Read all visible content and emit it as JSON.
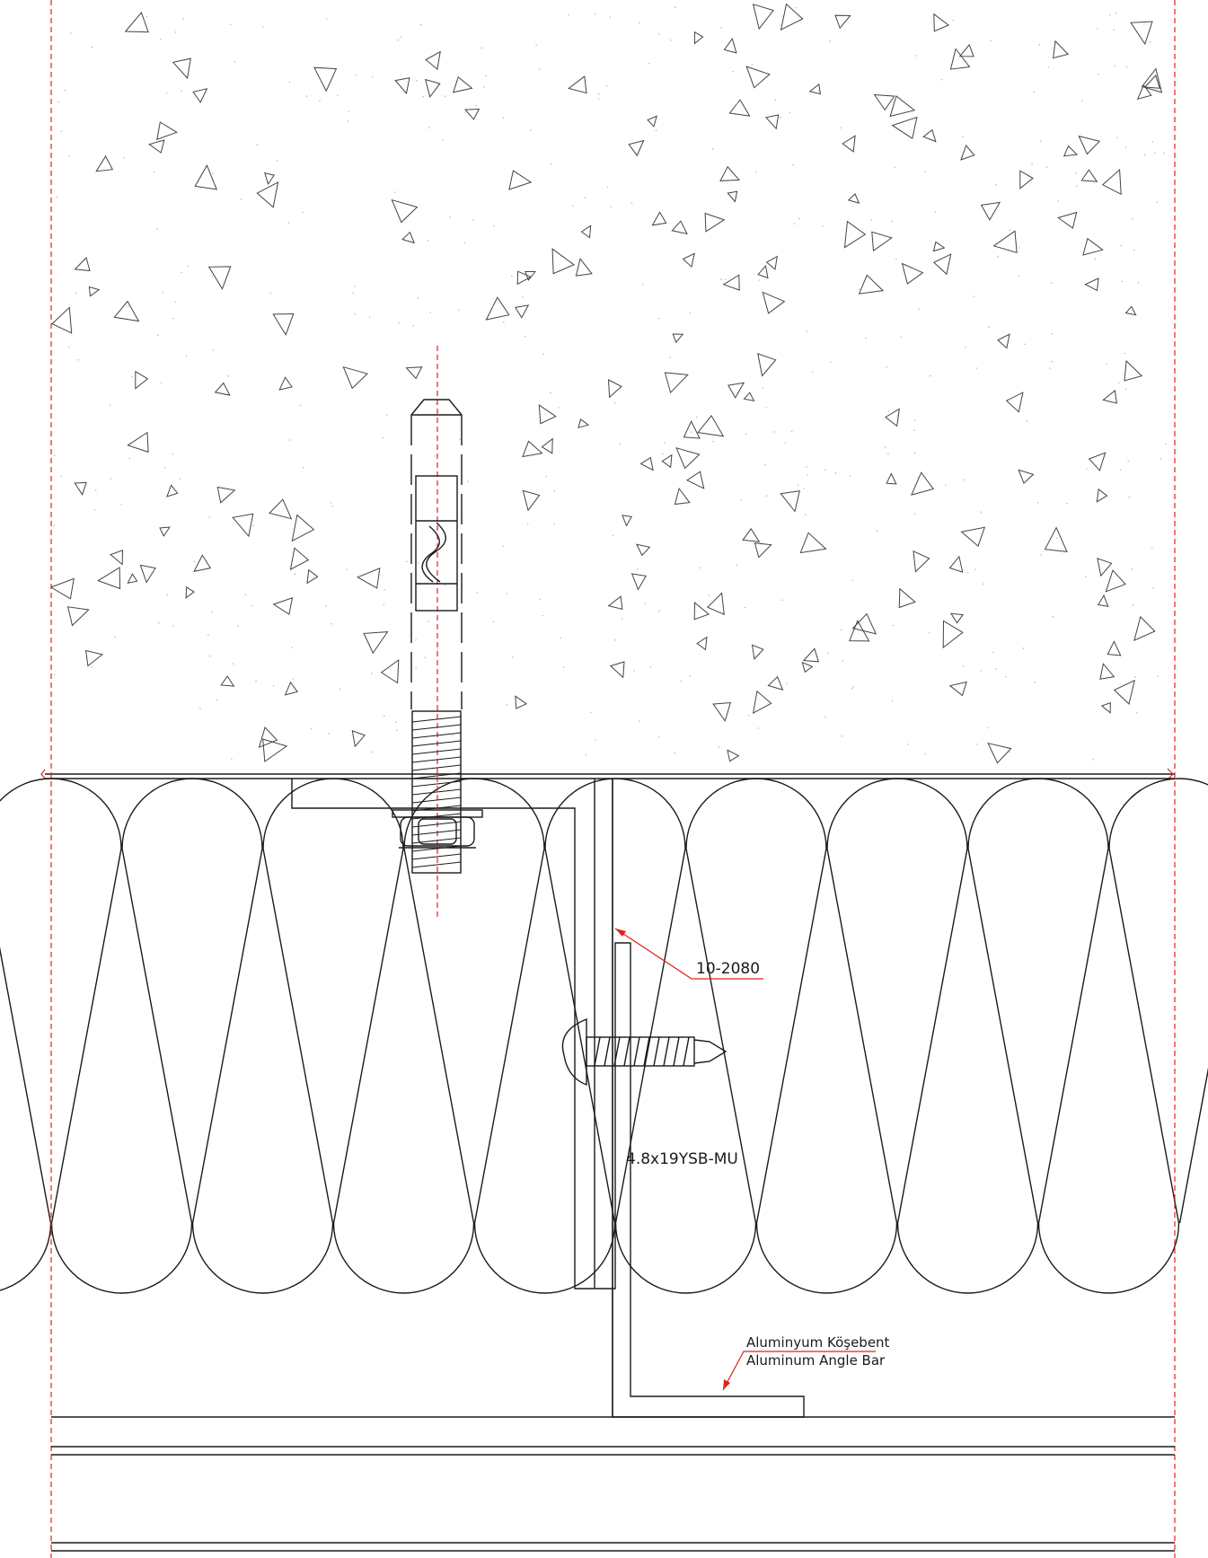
{
  "labels": {
    "profile_code": "10-2080",
    "screw_code": "4.8x19YSB-MU",
    "angle_bar_tr": "Aluminyum Köşebent",
    "angle_bar_en": "Aluminum Angle Bar"
  },
  "colors": {
    "line": "#1a1a1a",
    "annotation": "#e0211b",
    "background": "#ffffff"
  }
}
